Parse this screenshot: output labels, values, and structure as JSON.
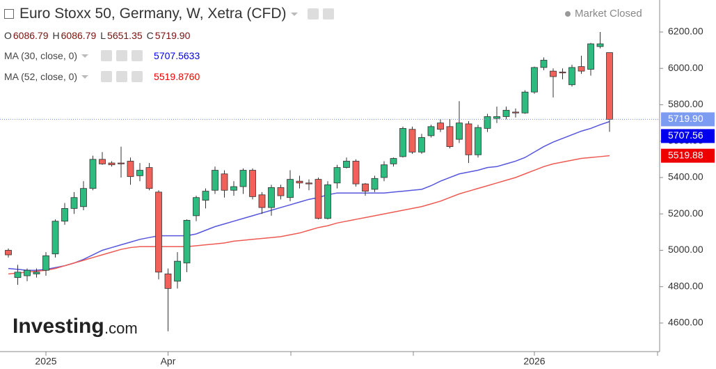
{
  "header": {
    "title": "Euro Stoxx 50, Germany, W, Xetra (CFD)",
    "status": "Market Closed",
    "ohlc": [
      {
        "key": "O",
        "value": "6086.79"
      },
      {
        "key": "H",
        "value": "6086.79"
      },
      {
        "key": "L",
        "value": "5651.35"
      },
      {
        "key": "C",
        "value": "5719.90"
      }
    ],
    "studies": [
      {
        "name": "MA (30, close, 0)",
        "value": "5707.5633"
      },
      {
        "name": "MA (52, close, 0)",
        "value": "5519.8760"
      }
    ]
  },
  "watermark": {
    "brand": "Investing",
    "suffix": ".com"
  },
  "chart_data": {
    "type": "candlestick",
    "categories": [
      null,
      null,
      null,
      null,
      "2025",
      null,
      null,
      null,
      null,
      null,
      null,
      null,
      null,
      null,
      null,
      null,
      null,
      "Apr",
      null,
      null,
      null,
      null,
      null,
      null,
      null,
      null,
      null,
      null,
      null,
      null,
      null,
      null,
      null,
      null,
      null,
      null,
      null,
      null,
      null,
      null,
      null,
      null,
      null,
      null,
      null,
      null,
      null,
      null,
      null,
      null,
      null,
      null,
      null,
      null,
      null,
      null,
      "2026",
      null,
      null,
      null,
      null,
      null,
      null,
      null,
      null
    ],
    "open": [
      5000,
      4850,
      4860,
      4870,
      4890,
      4980,
      5160,
      5230,
      5240,
      5340,
      5500,
      5480,
      5480,
      5490,
      5410,
      5455,
      5320,
      4870,
      4830,
      4930,
      5190,
      5275,
      5330,
      5420,
      5330,
      5350,
      5440,
      5305,
      5235,
      5345,
      5290,
      5380,
      5370,
      5390,
      5175,
      5370,
      5455,
      5490,
      5365,
      5335,
      5400,
      5475,
      5515,
      5665,
      5540,
      5630,
      5700,
      5680,
      5610,
      5695,
      5525,
      5670,
      5725,
      5735,
      5760,
      5755,
      5870,
      6005,
      5985,
      5980,
      5910,
      6010,
      5995,
      6120,
      6086.79
    ],
    "high": [
      5010,
      4920,
      4900,
      4900,
      4990,
      5170,
      5260,
      5320,
      5380,
      5520,
      5540,
      5490,
      5570,
      5510,
      5480,
      5480,
      5330,
      4900,
      4990,
      5170,
      5300,
      5340,
      5460,
      5440,
      5380,
      5450,
      5450,
      5320,
      5360,
      5360,
      5440,
      5410,
      5390,
      5400,
      5380,
      5470,
      5510,
      5500,
      5370,
      5410,
      5490,
      5510,
      5680,
      5680,
      5640,
      5690,
      5720,
      5720,
      5820,
      5710,
      5690,
      5750,
      5790,
      5790,
      5780,
      5880,
      6010,
      6060,
      6000,
      6000,
      6020,
      6070,
      6140,
      6200,
      6086.79
    ],
    "low": [
      4960,
      4810,
      4830,
      4850,
      4860,
      4960,
      5140,
      5200,
      5220,
      5330,
      5470,
      5460,
      5400,
      5360,
      5380,
      5330,
      4840,
      4555,
      4790,
      4880,
      5160,
      5230,
      5310,
      5290,
      5300,
      5310,
      5280,
      5200,
      5190,
      5280,
      5270,
      5340,
      5330,
      5170,
      5170,
      5340,
      5450,
      5350,
      5300,
      5320,
      5380,
      5460,
      5510,
      5530,
      5530,
      5620,
      5650,
      5560,
      5590,
      5480,
      5510,
      5650,
      5700,
      5720,
      5730,
      5750,
      5860,
      5990,
      5840,
      5940,
      5900,
      5970,
      5960,
      6110,
      5651.35
    ],
    "close": [
      4975,
      4880,
      4890,
      4880,
      4970,
      5160,
      5230,
      5290,
      5340,
      5500,
      5475,
      5470,
      5475,
      5405,
      5440,
      5340,
      4880,
      4790,
      4940,
      5165,
      5290,
      5325,
      5440,
      5330,
      5350,
      5440,
      5295,
      5235,
      5345,
      5300,
      5390,
      5370,
      5365,
      5175,
      5360,
      5455,
      5490,
      5365,
      5325,
      5395,
      5470,
      5505,
      5670,
      5540,
      5620,
      5680,
      5665,
      5570,
      5700,
      5525,
      5675,
      5735,
      5735,
      5770,
      5755,
      5870,
      6005,
      6045,
      5955,
      5975,
      6005,
      5985,
      6135,
      6135,
      5719.9
    ],
    "close_label": "5719.90",
    "up_color": "#2dbb7f",
    "down_color": "#f2605a",
    "series": [
      {
        "name": "MA (30, close, 0)",
        "color": "#5555dd",
        "label_color": "#0000ee",
        "price_label": "5707.56",
        "values": [
          4900,
          4895,
          4890,
          4890,
          4895,
          4905,
          4915,
          4930,
          4950,
          4975,
          5000,
          5015,
          5030,
          5045,
          5060,
          5070,
          5080,
          5080,
          5080,
          5080,
          5090,
          5110,
          5130,
          5145,
          5160,
          5175,
          5190,
          5205,
          5220,
          5235,
          5250,
          5265,
          5280,
          5290,
          5305,
          5315,
          5315,
          5315,
          5315,
          5315,
          5315,
          5320,
          5325,
          5330,
          5335,
          5355,
          5380,
          5400,
          5420,
          5430,
          5440,
          5455,
          5460,
          5475,
          5490,
          5510,
          5540,
          5570,
          5595,
          5615,
          5635,
          5655,
          5670,
          5690,
          5707.56
        ]
      },
      {
        "name": "MA (52, close, 0)",
        "color": "#ee5a52",
        "label_color": "#ee0000",
        "price_label": "5519.88",
        "values": [
          4870,
          4875,
          4880,
          4885,
          4890,
          4900,
          4915,
          4930,
          4945,
          4960,
          4975,
          4990,
          5005,
          5015,
          5020,
          5020,
          5020,
          5020,
          5020,
          5020,
          5025,
          5030,
          5035,
          5040,
          5050,
          5055,
          5060,
          5065,
          5070,
          5075,
          5085,
          5095,
          5110,
          5125,
          5135,
          5150,
          5160,
          5170,
          5180,
          5190,
          5200,
          5210,
          5220,
          5230,
          5240,
          5255,
          5270,
          5290,
          5310,
          5325,
          5340,
          5355,
          5370,
          5385,
          5400,
          5420,
          5440,
          5460,
          5475,
          5485,
          5495,
          5505,
          5510,
          5515,
          5519.88
        ]
      }
    ],
    "ylim": [
      4443,
      6376
    ],
    "yticks": [
      {
        "value": 4600,
        "label": "4600.00"
      },
      {
        "value": 4800,
        "label": "4800.00"
      },
      {
        "value": 5000,
        "label": "5000.00"
      },
      {
        "value": 5200,
        "label": "5200.00"
      },
      {
        "value": 5400,
        "label": "5400.00"
      },
      {
        "value": 5600,
        "label": "5600.00"
      },
      {
        "value": 5800,
        "label": "5800.00"
      },
      {
        "value": 6000,
        "label": "6000.00"
      },
      {
        "value": 6200,
        "label": "6200.00"
      }
    ],
    "grid": false
  }
}
